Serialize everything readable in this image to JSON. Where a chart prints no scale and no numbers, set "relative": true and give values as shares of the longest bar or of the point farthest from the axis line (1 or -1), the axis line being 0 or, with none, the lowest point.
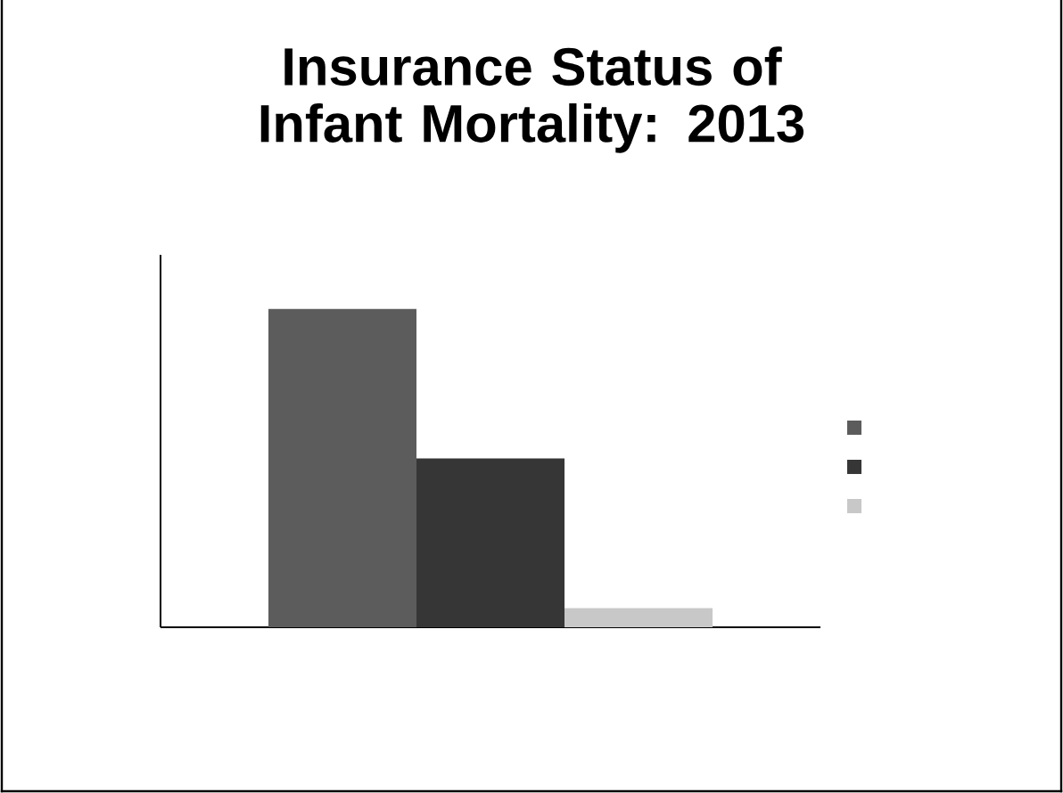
{
  "chart_data": {
    "type": "bar",
    "title": "Insurance Status of Infant Mortality: 2013",
    "relative": true,
    "categories": [
      null
    ],
    "series": [
      {
        "color": "#5c5c5c",
        "values": [
          1
        ]
      },
      {
        "color": "#363636",
        "values": [
          0.53
        ]
      },
      {
        "color": "#c8c8c8",
        "values": [
          0.06
        ]
      }
    ]
  }
}
